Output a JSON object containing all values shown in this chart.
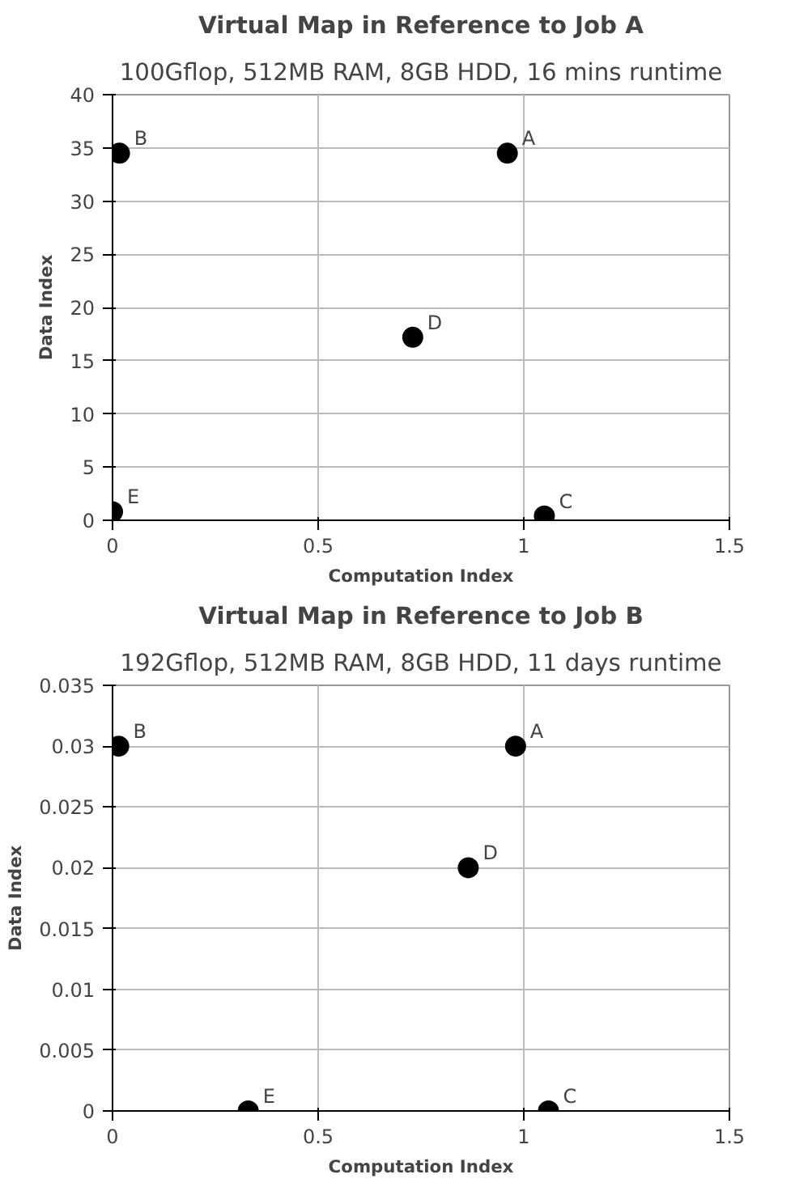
{
  "chart_data": [
    {
      "type": "scatter",
      "title": "Virtual Map in Reference to Job A",
      "subtitle": "100Gflop, 512MB RAM, 8GB HDD, 16 mins runtime",
      "xlabel": "Computation Index",
      "ylabel": "Data Index",
      "series": [
        {
          "color": "#000000",
          "x": [
            0.96,
            0.017,
            1.05,
            0.73,
            0
          ],
          "values": [
            34.5,
            34.5,
            0.4,
            17.2,
            0.8
          ]
        }
      ],
      "annotations": [
        {
          "text": "A",
          "x": 0.96,
          "y": 34.5
        },
        {
          "text": "B",
          "x": 0.017,
          "y": 34.5
        },
        {
          "text": "C",
          "x": 1.05,
          "y": 0.4
        },
        {
          "text": "D",
          "x": 0.73,
          "y": 17.2
        },
        {
          "text": "E",
          "x": 0,
          "y": 0.8
        }
      ],
      "xlim": [
        0,
        1.5
      ],
      "xticks": [
        0,
        0.5,
        1,
        1.5
      ],
      "ylim": [
        0,
        40
      ],
      "yticks": [
        0,
        5,
        10,
        15,
        20,
        25,
        30,
        35,
        40
      ],
      "grid": true,
      "marker": "circle"
    },
    {
      "type": "scatter",
      "title": "Virtual Map in Reference to Job B",
      "subtitle": "192Gflop, 512MB RAM, 8GB HDD, 11 days runtime",
      "xlabel": "Computation Index",
      "ylabel": "Data Index",
      "series": [
        {
          "color": "#000000",
          "x": [
            0.98,
            0.015,
            1.06,
            0.865,
            0.33
          ],
          "values": [
            0.03,
            0.03,
            0,
            0.02,
            0
          ]
        }
      ],
      "annotations": [
        {
          "text": "A",
          "x": 0.98,
          "y": 0.03
        },
        {
          "text": "B",
          "x": 0.015,
          "y": 0.03
        },
        {
          "text": "C",
          "x": 1.06,
          "y": 0
        },
        {
          "text": "D",
          "x": 0.865,
          "y": 0.02
        },
        {
          "text": "E",
          "x": 0.33,
          "y": 0
        }
      ],
      "xlim": [
        0,
        1.5
      ],
      "xticks": [
        0,
        0.5,
        1,
        1.5
      ],
      "ylim": [
        0,
        0.035
      ],
      "yticks": [
        0,
        0.005,
        0.01,
        0.015,
        0.02,
        0.025,
        0.03,
        0.035
      ],
      "grid": true,
      "marker": "circle"
    }
  ]
}
